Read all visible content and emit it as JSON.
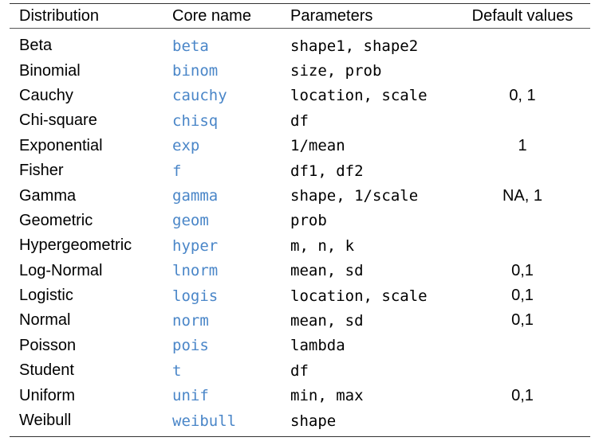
{
  "table": {
    "headers": [
      "Distribution",
      "Core name",
      "Parameters",
      "Default values"
    ],
    "rows": [
      {
        "distribution": "Beta",
        "core_name": "beta",
        "parameters": "shape1, shape2",
        "defaults": ""
      },
      {
        "distribution": "Binomial",
        "core_name": "binom",
        "parameters": "size, prob",
        "defaults": ""
      },
      {
        "distribution": "Cauchy",
        "core_name": "cauchy",
        "parameters": "location, scale",
        "defaults": "0, 1"
      },
      {
        "distribution": "Chi-square",
        "core_name": "chisq",
        "parameters": "df",
        "defaults": ""
      },
      {
        "distribution": "Exponential",
        "core_name": "exp",
        "parameters": "1/mean",
        "defaults": "1"
      },
      {
        "distribution": "Fisher",
        "core_name": "f",
        "parameters": "df1, df2",
        "defaults": ""
      },
      {
        "distribution": "Gamma",
        "core_name": "gamma",
        "parameters": "shape, 1/scale",
        "defaults": "NA, 1"
      },
      {
        "distribution": "Geometric",
        "core_name": "geom",
        "parameters": "prob",
        "defaults": ""
      },
      {
        "distribution": "Hypergeometric",
        "core_name": "hyper",
        "parameters": "m, n, k",
        "defaults": ""
      },
      {
        "distribution": "Log-Normal",
        "core_name": "lnorm",
        "parameters": "mean, sd",
        "defaults": "0,1"
      },
      {
        "distribution": "Logistic",
        "core_name": "logis",
        "parameters": "location, scale",
        "defaults": "0,1"
      },
      {
        "distribution": "Normal",
        "core_name": "norm",
        "parameters": "mean, sd",
        "defaults": "0,1"
      },
      {
        "distribution": "Poisson",
        "core_name": "pois",
        "parameters": "lambda",
        "defaults": ""
      },
      {
        "distribution": "Student",
        "core_name": "t",
        "parameters": "df",
        "defaults": ""
      },
      {
        "distribution": "Uniform",
        "core_name": "unif",
        "parameters": "min, max",
        "defaults": "0,1"
      },
      {
        "distribution": "Weibull",
        "core_name": "weibull",
        "parameters": "shape",
        "defaults": ""
      }
    ]
  },
  "colors": {
    "core_name_text": "#4a86c8",
    "rule": "#333333"
  }
}
